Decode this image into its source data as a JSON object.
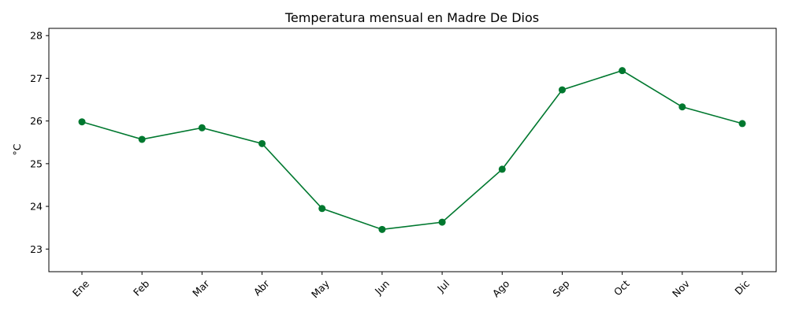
{
  "chart_data": {
    "type": "line",
    "title": "Temperatura mensual en Madre De Dios",
    "xlabel": "",
    "ylabel": "°C",
    "categories": [
      "Ene",
      "Feb",
      "Mar",
      "Abr",
      "May",
      "Jun",
      "Jul",
      "Ago",
      "Sep",
      "Oct",
      "Nov",
      "Dic"
    ],
    "series": [
      {
        "values": [
          25.98,
          25.57,
          25.84,
          25.47,
          23.95,
          23.46,
          23.63,
          24.87,
          26.73,
          27.18,
          26.33,
          25.94
        ],
        "color": "#00782f"
      }
    ],
    "yticks": [
      23,
      24,
      25,
      26,
      27,
      28
    ],
    "ylim": [
      22.47,
      28.17
    ],
    "grid": false,
    "legend": "none",
    "marker": "circle"
  }
}
